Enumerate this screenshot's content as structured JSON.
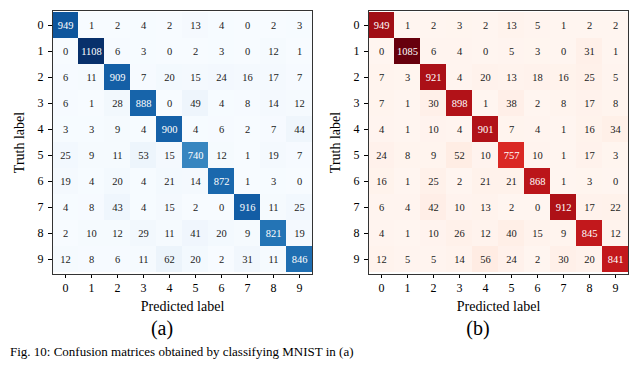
{
  "caption": "Fig. 10: Confusion matrices obtained by classifying MNIST in (a)",
  "chart_data": [
    {
      "type": "heatmap",
      "title": "(a)",
      "xlabel": "Predicted label",
      "ylabel": "Truth label",
      "x": [
        0,
        1,
        2,
        3,
        4,
        5,
        6,
        7,
        8,
        9
      ],
      "y": [
        0,
        1,
        2,
        3,
        4,
        5,
        6,
        7,
        8,
        9
      ],
      "color": "Blues",
      "data_labels": true,
      "cells": [
        [
          949,
          1,
          2,
          4,
          2,
          13,
          4,
          0,
          2,
          3
        ],
        [
          0,
          1108,
          6,
          3,
          0,
          2,
          3,
          0,
          12,
          1
        ],
        [
          6,
          11,
          909,
          7,
          20,
          15,
          24,
          16,
          17,
          7
        ],
        [
          6,
          1,
          28,
          888,
          0,
          49,
          4,
          8,
          14,
          12
        ],
        [
          3,
          3,
          9,
          4,
          900,
          4,
          6,
          2,
          7,
          44
        ],
        [
          25,
          9,
          11,
          53,
          15,
          740,
          12,
          1,
          19,
          7
        ],
        [
          19,
          4,
          20,
          4,
          21,
          14,
          872,
          1,
          3,
          0
        ],
        [
          4,
          8,
          43,
          4,
          15,
          2,
          0,
          916,
          11,
          25
        ],
        [
          2,
          10,
          12,
          29,
          11,
          41,
          20,
          9,
          821,
          19
        ],
        [
          12,
          8,
          6,
          11,
          62,
          20,
          2,
          31,
          11,
          846
        ]
      ]
    },
    {
      "type": "heatmap",
      "title": "(b)",
      "xlabel": "Predicted label",
      "ylabel": "Truth label",
      "x": [
        0,
        1,
        2,
        3,
        4,
        5,
        6,
        7,
        8,
        9
      ],
      "y": [
        0,
        1,
        2,
        3,
        4,
        5,
        6,
        7,
        8,
        9
      ],
      "color": "Reds",
      "data_labels": true,
      "cells": [
        [
          949,
          1,
          2,
          3,
          2,
          13,
          5,
          1,
          2,
          2
        ],
        [
          0,
          1085,
          6,
          4,
          0,
          5,
          3,
          0,
          31,
          1
        ],
        [
          7,
          3,
          921,
          4,
          20,
          13,
          18,
          16,
          25,
          5
        ],
        [
          7,
          1,
          30,
          898,
          1,
          38,
          2,
          8,
          17,
          8
        ],
        [
          4,
          1,
          10,
          4,
          901,
          7,
          4,
          1,
          16,
          34
        ],
        [
          24,
          8,
          9,
          52,
          10,
          757,
          10,
          1,
          17,
          3
        ],
        [
          16,
          1,
          25,
          2,
          21,
          21,
          868,
          1,
          3,
          0
        ],
        [
          6,
          4,
          42,
          10,
          13,
          2,
          0,
          912,
          17,
          22
        ],
        [
          4,
          1,
          10,
          26,
          12,
          40,
          15,
          9,
          845,
          12
        ],
        [
          12,
          5,
          5,
          14,
          56,
          24,
          2,
          30,
          20,
          841
        ]
      ]
    }
  ]
}
